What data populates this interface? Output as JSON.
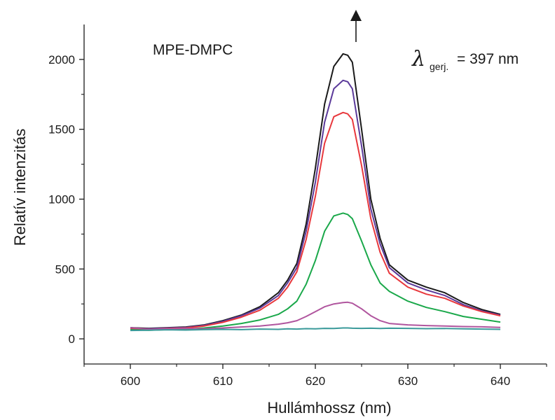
{
  "chart_data": {
    "type": "line",
    "xlabel": "Hullámhossz (nm)",
    "ylabel": "Relatív intenzitás",
    "xlim": [
      595,
      645
    ],
    "ylim": [
      -180,
      2250
    ],
    "xticks": [
      600,
      610,
      620,
      630,
      640
    ],
    "yticks": [
      0,
      500,
      1000,
      1500,
      2000
    ],
    "xtick_labels": [
      "600",
      "610",
      "620",
      "630",
      "640"
    ],
    "ytick_labels": [
      "0",
      "500",
      "1000",
      "1500",
      "2000"
    ],
    "grid": false,
    "annotations": {
      "sample": "MPE-DMPC",
      "lambda_symbol": "λ",
      "lambda_sub": "gerj.",
      "lambda_value": "= 397 nm",
      "arrow": "up"
    },
    "x": [
      600,
      602,
      604,
      606,
      608,
      610,
      612,
      614,
      616,
      617,
      618,
      619,
      620,
      621,
      622,
      623,
      623.5,
      624,
      625,
      626,
      627,
      628,
      630,
      632,
      634,
      636,
      638,
      640
    ],
    "series": [
      {
        "color": "#1a1a1a",
        "values": [
          80,
          75,
          80,
          85,
          100,
          130,
          170,
          230,
          330,
          420,
          540,
          820,
          1220,
          1680,
          1950,
          2040,
          2030,
          1980,
          1500,
          1000,
          720,
          530,
          420,
          370,
          330,
          260,
          210,
          175
        ]
      },
      {
        "color": "#5b3a9a",
        "values": [
          75,
          72,
          78,
          82,
          97,
          125,
          165,
          220,
          310,
          400,
          510,
          770,
          1120,
          1550,
          1790,
          1850,
          1840,
          1790,
          1380,
          930,
          680,
          510,
          400,
          350,
          310,
          245,
          200,
          170
        ]
      },
      {
        "color": "#e8383d",
        "values": [
          70,
          68,
          74,
          78,
          92,
          118,
          155,
          205,
          290,
          370,
          480,
          710,
          1020,
          1400,
          1590,
          1620,
          1610,
          1570,
          1240,
          860,
          620,
          470,
          370,
          320,
          290,
          235,
          195,
          165
        ]
      },
      {
        "color": "#1aa84a",
        "values": [
          65,
          62,
          66,
          70,
          78,
          92,
          110,
          135,
          175,
          215,
          270,
          390,
          560,
          770,
          880,
          900,
          890,
          860,
          700,
          530,
          400,
          340,
          270,
          225,
          195,
          160,
          140,
          120
        ]
      },
      {
        "color": "#b0559e",
        "values": [
          80,
          70,
          72,
          75,
          72,
          78,
          85,
          92,
          105,
          115,
          130,
          160,
          195,
          230,
          250,
          260,
          262,
          255,
          215,
          165,
          130,
          110,
          100,
          95,
          92,
          88,
          86,
          82
        ]
      },
      {
        "color": "#3a9a9a",
        "values": [
          60,
          62,
          65,
          63,
          66,
          68,
          66,
          70,
          68,
          72,
          70,
          73,
          72,
          75,
          74,
          78,
          78,
          76,
          75,
          76,
          74,
          76,
          75,
          73,
          74,
          72,
          70,
          68
        ]
      }
    ]
  }
}
